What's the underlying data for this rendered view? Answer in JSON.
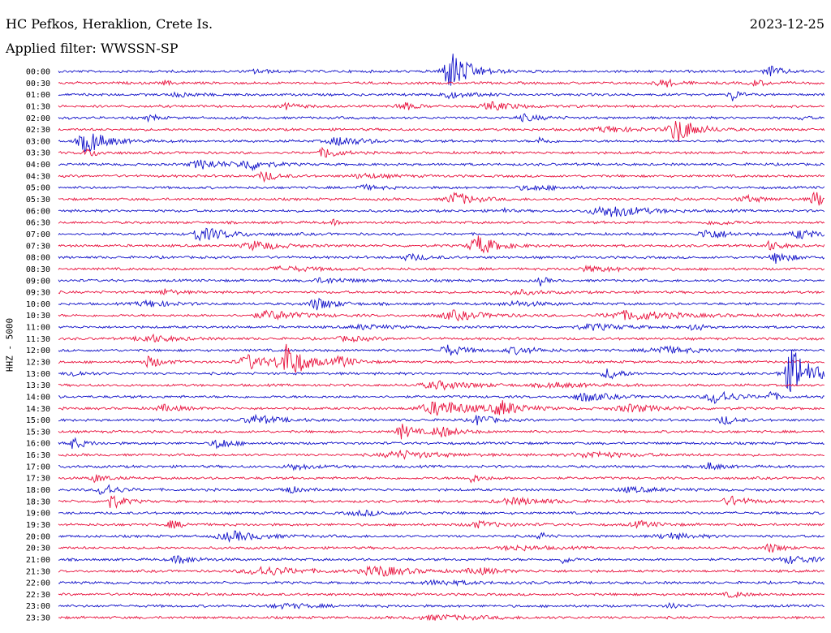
{
  "header": {
    "station": "HC Pefkos, Heraklion, Crete Is.",
    "filter": "Applied filter: WWSSN-SP",
    "date": "2023-12-25"
  },
  "chart_data": {
    "type": "line",
    "ylabel": "HHZ - 5000",
    "colors": {
      "even": "#1010c8",
      "odd": "#e8103c"
    },
    "rows": [
      {
        "time": "00:00",
        "events": [
          [
            0.515,
            2.6,
            0.03
          ],
          [
            0.93,
            0.7,
            0.02
          ],
          [
            0.26,
            0.3,
            0.02
          ]
        ]
      },
      {
        "time": "00:30",
        "events": [
          [
            0.79,
            0.6,
            0.02
          ],
          [
            0.14,
            0.3,
            0.01
          ],
          [
            0.91,
            0.4,
            0.02
          ]
        ]
      },
      {
        "time": "01:00",
        "events": [
          [
            0.88,
            1.0,
            0.01
          ],
          [
            0.51,
            0.4,
            0.04
          ],
          [
            0.16,
            0.3,
            0.03
          ]
        ]
      },
      {
        "time": "01:30",
        "events": [
          [
            0.45,
            0.6,
            0.02
          ],
          [
            0.57,
            0.5,
            0.04
          ],
          [
            0.3,
            0.4,
            0.02
          ]
        ]
      },
      {
        "time": "02:00",
        "events": [
          [
            0.12,
            0.6,
            0.01
          ],
          [
            0.61,
            0.4,
            0.03
          ],
          [
            0.97,
            0.3,
            0.01
          ]
        ]
      },
      {
        "time": "02:30",
        "events": [
          [
            0.81,
            1.7,
            0.03
          ],
          [
            0.72,
            0.4,
            0.04
          ]
        ]
      },
      {
        "time": "03:00",
        "events": [
          [
            0.04,
            1.6,
            0.03
          ],
          [
            0.37,
            0.6,
            0.04
          ],
          [
            0.63,
            0.6,
            0.01
          ]
        ]
      },
      {
        "time": "03:30",
        "events": [
          [
            0.35,
            0.8,
            0.02
          ],
          [
            0.04,
            0.5,
            0.02
          ]
        ]
      },
      {
        "time": "04:00",
        "events": [
          [
            0.19,
            0.6,
            0.04
          ],
          [
            0.25,
            0.7,
            0.03
          ]
        ]
      },
      {
        "time": "04:30",
        "events": [
          [
            0.27,
            0.7,
            0.02
          ],
          [
            0.4,
            0.3,
            0.04
          ]
        ]
      },
      {
        "time": "05:00",
        "events": [
          [
            0.4,
            0.3,
            0.03
          ],
          [
            0.62,
            0.3,
            0.05
          ]
        ]
      },
      {
        "time": "05:30",
        "events": [
          [
            0.52,
            0.9,
            0.03
          ],
          [
            0.9,
            0.4,
            0.03
          ],
          [
            0.99,
            1.0,
            0.02
          ]
        ]
      },
      {
        "time": "06:00",
        "events": [
          [
            0.73,
            0.5,
            0.05
          ],
          [
            0.58,
            0.4,
            0.01
          ],
          [
            0.71,
            0.4,
            0.05
          ]
        ]
      },
      {
        "time": "06:30",
        "events": [
          [
            0.36,
            0.3,
            0.01
          ],
          [
            0.86,
            0.3,
            0.03
          ]
        ]
      },
      {
        "time": "07:00",
        "events": [
          [
            0.2,
            0.6,
            0.05
          ],
          [
            0.18,
            0.8,
            0.01
          ],
          [
            0.85,
            0.7,
            0.03
          ],
          [
            0.97,
            0.6,
            0.03
          ]
        ]
      },
      {
        "time": "07:30",
        "events": [
          [
            0.55,
            1.3,
            0.03
          ],
          [
            0.93,
            0.6,
            0.02
          ],
          [
            0.26,
            0.6,
            0.04
          ]
        ]
      },
      {
        "time": "08:00",
        "events": [
          [
            0.94,
            0.9,
            0.02
          ],
          [
            0.46,
            0.4,
            0.03
          ]
        ]
      },
      {
        "time": "08:30",
        "events": [
          [
            0.3,
            0.3,
            0.06
          ],
          [
            0.7,
            0.3,
            0.06
          ]
        ]
      },
      {
        "time": "09:00",
        "events": [
          [
            0.63,
            0.6,
            0.01
          ],
          [
            0.35,
            0.3,
            0.05
          ]
        ]
      },
      {
        "time": "09:30",
        "events": [
          [
            0.14,
            0.4,
            0.02
          ],
          [
            0.6,
            0.3,
            0.04
          ]
        ]
      },
      {
        "time": "10:00",
        "events": [
          [
            0.34,
            0.8,
            0.03
          ],
          [
            0.12,
            0.4,
            0.04
          ],
          [
            0.6,
            0.3,
            0.05
          ]
        ]
      },
      {
        "time": "10:30",
        "events": [
          [
            0.28,
            0.6,
            0.05
          ],
          [
            0.52,
            0.6,
            0.05
          ],
          [
            0.75,
            0.6,
            0.08
          ]
        ]
      },
      {
        "time": "11:00",
        "events": [
          [
            0.83,
            0.8,
            0.01
          ],
          [
            0.7,
            0.4,
            0.05
          ],
          [
            0.4,
            0.3,
            0.04
          ]
        ]
      },
      {
        "time": "11:30",
        "events": [
          [
            0.12,
            0.5,
            0.04
          ],
          [
            0.38,
            0.3,
            0.04
          ]
        ]
      },
      {
        "time": "12:00",
        "events": [
          [
            0.51,
            0.7,
            0.03
          ],
          [
            0.6,
            0.4,
            0.04
          ],
          [
            0.79,
            0.5,
            0.05
          ]
        ]
      },
      {
        "time": "12:30",
        "events": [
          [
            0.3,
            2.4,
            0.03
          ],
          [
            0.25,
            1.0,
            0.03
          ],
          [
            0.12,
            0.8,
            0.02
          ],
          [
            0.37,
            0.7,
            0.02
          ]
        ]
      },
      {
        "time": "13:00",
        "events": [
          [
            0.96,
            3.3,
            0.03
          ],
          [
            0.72,
            0.8,
            0.02
          ],
          [
            0.02,
            0.4,
            0.02
          ]
        ]
      },
      {
        "time": "13:30",
        "events": [
          [
            0.5,
            0.5,
            0.06
          ],
          [
            0.65,
            0.3,
            0.05
          ]
        ]
      },
      {
        "time": "14:00",
        "events": [
          [
            0.86,
            1.0,
            0.03
          ],
          [
            0.93,
            0.8,
            0.01
          ],
          [
            0.69,
            0.6,
            0.04
          ]
        ]
      },
      {
        "time": "14:30",
        "events": [
          [
            0.5,
            1.0,
            0.06
          ],
          [
            0.58,
            0.9,
            0.03
          ],
          [
            0.75,
            0.5,
            0.05
          ],
          [
            0.14,
            0.4,
            0.03
          ]
        ]
      },
      {
        "time": "15:00",
        "events": [
          [
            0.26,
            0.6,
            0.04
          ],
          [
            0.55,
            0.8,
            0.02
          ],
          [
            0.87,
            0.6,
            0.02
          ]
        ]
      },
      {
        "time": "15:30",
        "events": [
          [
            0.45,
            1.0,
            0.02
          ],
          [
            0.5,
            0.7,
            0.03
          ]
        ]
      },
      {
        "time": "16:00",
        "events": [
          [
            0.02,
            0.7,
            0.02
          ],
          [
            0.21,
            0.8,
            0.02
          ]
        ]
      },
      {
        "time": "16:30",
        "events": [
          [
            0.45,
            0.5,
            0.06
          ],
          [
            0.7,
            0.4,
            0.06
          ]
        ]
      },
      {
        "time": "17:00",
        "events": [
          [
            0.31,
            0.4,
            0.03
          ],
          [
            0.85,
            0.5,
            0.02
          ]
        ]
      },
      {
        "time": "17:30",
        "events": [
          [
            0.05,
            0.5,
            0.02
          ],
          [
            0.54,
            0.5,
            0.02
          ]
        ]
      },
      {
        "time": "18:00",
        "events": [
          [
            0.06,
            1.0,
            0.02
          ],
          [
            0.3,
            0.5,
            0.02
          ],
          [
            0.75,
            0.3,
            0.05
          ]
        ]
      },
      {
        "time": "18:30",
        "events": [
          [
            0.07,
            1.0,
            0.02
          ],
          [
            0.88,
            0.6,
            0.03
          ],
          [
            0.6,
            0.4,
            0.06
          ]
        ]
      },
      {
        "time": "19:00",
        "events": [
          [
            0.4,
            0.3,
            0.05
          ]
        ]
      },
      {
        "time": "19:30",
        "events": [
          [
            0.15,
            0.5,
            0.02
          ],
          [
            0.55,
            0.4,
            0.04
          ],
          [
            0.76,
            0.4,
            0.03
          ]
        ]
      },
      {
        "time": "20:00",
        "events": [
          [
            0.23,
            0.6,
            0.05
          ],
          [
            0.63,
            0.6,
            0.01
          ],
          [
            0.8,
            0.4,
            0.04
          ]
        ]
      },
      {
        "time": "20:30",
        "events": [
          [
            0.93,
            0.6,
            0.02
          ],
          [
            0.6,
            0.3,
            0.05
          ]
        ]
      },
      {
        "time": "21:00",
        "events": [
          [
            0.16,
            0.5,
            0.03
          ],
          [
            0.66,
            0.6,
            0.01
          ],
          [
            0.96,
            0.5,
            0.04
          ]
        ]
      },
      {
        "time": "21:30",
        "events": [
          [
            0.27,
            0.6,
            0.06
          ],
          [
            0.42,
            0.7,
            0.05
          ],
          [
            0.55,
            0.4,
            0.04
          ]
        ]
      },
      {
        "time": "22:00",
        "events": [
          [
            0.5,
            0.3,
            0.06
          ]
        ]
      },
      {
        "time": "22:30",
        "events": [
          [
            0.88,
            0.4,
            0.02
          ]
        ]
      },
      {
        "time": "23:00",
        "events": [
          [
            0.8,
            0.6,
            0.01
          ],
          [
            0.3,
            0.3,
            0.05
          ]
        ]
      },
      {
        "time": "23:30",
        "events": [
          [
            0.5,
            0.3,
            0.08
          ]
        ]
      }
    ]
  }
}
